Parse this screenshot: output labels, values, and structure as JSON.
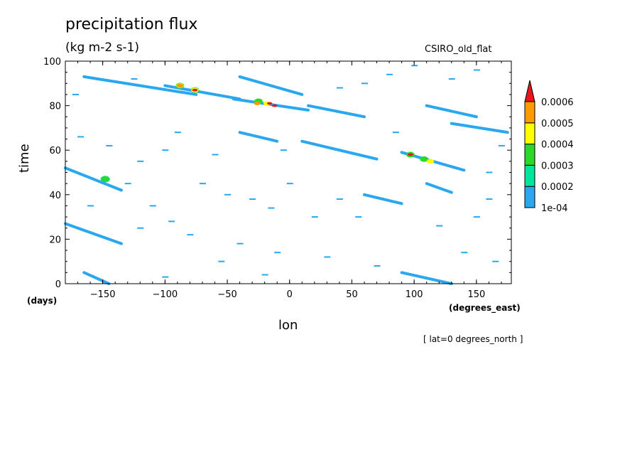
{
  "chart_data": {
    "type": "heatmap",
    "title": "precipitation flux",
    "units": "(kg m-2 s-1)",
    "model_label": "CSIRO_old_flat",
    "xlabel": "lon",
    "x_units": "(degrees_east)",
    "ylabel": "time",
    "y_units": "(days)",
    "slice_note": "[ lat=0 degrees_north ]",
    "xlim": [
      -180,
      178
    ],
    "ylim": [
      0,
      100
    ],
    "x_ticks": [
      -150,
      -100,
      -50,
      0,
      50,
      100,
      150
    ],
    "x_tick_labels": [
      "−150",
      "−100",
      "−50",
      "0",
      "50",
      "100",
      "150"
    ],
    "y_ticks": [
      0,
      20,
      40,
      60,
      80,
      100
    ],
    "y_tick_labels": [
      "0",
      "20",
      "40",
      "60",
      "80",
      "100"
    ],
    "colorbar": {
      "labels": [
        "1e-04",
        "0.0002",
        "0.0003",
        "0.0004",
        "0.0005",
        "0.0006"
      ],
      "colors": [
        "#2aa7ee",
        "#00e59c",
        "#2ad92a",
        "#ffff00",
        "#ff9b00",
        "#e8161a"
      ]
    },
    "bands": [
      {
        "x0": -165,
        "y0": 93,
        "x1": -75,
        "y1": 85,
        "level": 1
      },
      {
        "x0": -100,
        "y0": 89,
        "x1": -40,
        "y1": 83,
        "level": 1
      },
      {
        "x0": -45,
        "y0": 83,
        "x1": 15,
        "y1": 78,
        "level": 1
      },
      {
        "x0": 15,
        "y0": 80,
        "x1": 60,
        "y1": 75,
        "level": 1
      },
      {
        "x0": -40,
        "y0": 93,
        "x1": 10,
        "y1": 85,
        "level": 1
      },
      {
        "x0": -40,
        "y0": 68,
        "x1": -10,
        "y1": 64,
        "level": 1
      },
      {
        "x0": 10,
        "y0": 64,
        "x1": 70,
        "y1": 56,
        "level": 1
      },
      {
        "x0": 90,
        "y0": 59,
        "x1": 140,
        "y1": 51,
        "level": 1
      },
      {
        "x0": -180,
        "y0": 52,
        "x1": -135,
        "y1": 42,
        "level": 1
      },
      {
        "x0": -180,
        "y0": 27,
        "x1": -135,
        "y1": 18,
        "level": 1
      },
      {
        "x0": -165,
        "y0": 5,
        "x1": -145,
        "y1": 0,
        "level": 1
      },
      {
        "x0": 90,
        "y0": 5,
        "x1": 130,
        "y1": 0,
        "level": 1
      },
      {
        "x0": 130,
        "y0": 72,
        "x1": 175,
        "y1": 68,
        "level": 1
      },
      {
        "x0": 110,
        "y0": 80,
        "x1": 150,
        "y1": 75,
        "level": 1
      },
      {
        "x0": 110,
        "y0": 45,
        "x1": 130,
        "y1": 41,
        "level": 1
      },
      {
        "x0": 60,
        "y0": 40,
        "x1": 90,
        "y1": 36,
        "level": 1
      }
    ],
    "specks": [
      {
        "x": -125,
        "y": 92
      },
      {
        "x": -172,
        "y": 85
      },
      {
        "x": -168,
        "y": 66
      },
      {
        "x": -145,
        "y": 62
      },
      {
        "x": -90,
        "y": 68
      },
      {
        "x": -60,
        "y": 58
      },
      {
        "x": -100,
        "y": 60
      },
      {
        "x": -120,
        "y": 55
      },
      {
        "x": -70,
        "y": 45
      },
      {
        "x": -50,
        "y": 40
      },
      {
        "x": -30,
        "y": 38
      },
      {
        "x": -15,
        "y": 34
      },
      {
        "x": 0,
        "y": 45
      },
      {
        "x": 20,
        "y": 30
      },
      {
        "x": 40,
        "y": 38
      },
      {
        "x": 55,
        "y": 30
      },
      {
        "x": -110,
        "y": 35
      },
      {
        "x": -95,
        "y": 28
      },
      {
        "x": -80,
        "y": 22
      },
      {
        "x": -120,
        "y": 25
      },
      {
        "x": -40,
        "y": 18
      },
      {
        "x": -10,
        "y": 14
      },
      {
        "x": 30,
        "y": 12
      },
      {
        "x": 70,
        "y": 8
      },
      {
        "x": 120,
        "y": 26
      },
      {
        "x": 150,
        "y": 30
      },
      {
        "x": 160,
        "y": 38
      },
      {
        "x": 140,
        "y": 14
      },
      {
        "x": 165,
        "y": 10
      },
      {
        "x": -55,
        "y": 10
      },
      {
        "x": -100,
        "y": 3
      },
      {
        "x": -20,
        "y": 4
      },
      {
        "x": 80,
        "y": 94
      },
      {
        "x": 100,
        "y": 98
      },
      {
        "x": 130,
        "y": 92
      },
      {
        "x": 150,
        "y": 96
      },
      {
        "x": 40,
        "y": 88
      },
      {
        "x": 60,
        "y": 90
      },
      {
        "x": 170,
        "y": 62
      },
      {
        "x": 160,
        "y": 50
      },
      {
        "x": -160,
        "y": 35
      },
      {
        "x": -130,
        "y": 45
      },
      {
        "x": -5,
        "y": 60
      },
      {
        "x": 85,
        "y": 68
      }
    ],
    "hotspots": [
      {
        "x": -88,
        "y": 89,
        "level": 3
      },
      {
        "x": -88,
        "y": 89,
        "level": 4
      },
      {
        "x": -88,
        "y": 89,
        "level": 5
      },
      {
        "x": -76,
        "y": 87,
        "level": 3
      },
      {
        "x": -76,
        "y": 87,
        "level": 4
      },
      {
        "x": -76,
        "y": 87,
        "level": 6
      },
      {
        "x": -25,
        "y": 82,
        "level": 3
      },
      {
        "x": -26,
        "y": 81,
        "level": 5
      },
      {
        "x": -18,
        "y": 81,
        "level": 4
      },
      {
        "x": -16,
        "y": 81,
        "level": 6
      },
      {
        "x": -12,
        "y": 80,
        "level": 6
      },
      {
        "x": -148,
        "y": 47,
        "level": 2
      },
      {
        "x": -148,
        "y": 47,
        "level": 3
      },
      {
        "x": 97,
        "y": 58,
        "level": 3
      },
      {
        "x": 97,
        "y": 58,
        "level": 6
      },
      {
        "x": 108,
        "y": 56,
        "level": 3
      },
      {
        "x": 113,
        "y": 55,
        "level": 4
      }
    ]
  }
}
